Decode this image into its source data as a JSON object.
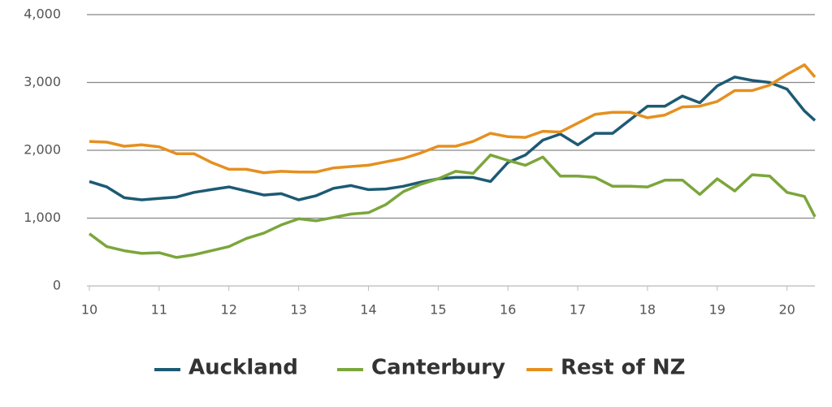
{
  "chart_data": {
    "type": "line",
    "x": [
      10,
      10.25,
      10.5,
      10.75,
      11,
      11.25,
      11.5,
      11.75,
      12,
      12.25,
      12.5,
      12.75,
      13,
      13.25,
      13.5,
      13.75,
      14,
      14.25,
      14.5,
      14.75,
      15,
      15.25,
      15.5,
      15.75,
      16,
      16.25,
      16.5,
      16.75,
      17,
      17.25,
      17.5,
      17.75,
      18,
      18.25,
      18.5,
      18.75,
      19,
      19.25,
      19.5,
      19.75,
      20,
      20.25,
      20.4
    ],
    "series": [
      {
        "name": "Auckland",
        "color": "#1d5a74",
        "values": [
          1540,
          1460,
          1300,
          1270,
          1290,
          1310,
          1380,
          1420,
          1460,
          1400,
          1340,
          1360,
          1270,
          1330,
          1440,
          1480,
          1420,
          1430,
          1470,
          1530,
          1580,
          1600,
          1600,
          1540,
          1820,
          1930,
          2150,
          2240,
          2080,
          2250,
          2250,
          2450,
          2650,
          2650,
          2800,
          2700,
          2950,
          3080,
          3030,
          3000,
          2900,
          2580,
          2440
        ]
      },
      {
        "name": "Canterbury",
        "color": "#7ba63b",
        "values": [
          770,
          580,
          520,
          480,
          490,
          420,
          460,
          520,
          580,
          700,
          780,
          900,
          990,
          960,
          1010,
          1060,
          1080,
          1200,
          1390,
          1500,
          1580,
          1690,
          1660,
          1930,
          1850,
          1780,
          1900,
          1620,
          1620,
          1600,
          1470,
          1470,
          1460,
          1560,
          1560,
          1350,
          1580,
          1400,
          1640,
          1620,
          1380,
          1320,
          1020
        ]
      },
      {
        "name": "Rest of NZ",
        "color": "#e5901f",
        "values": [
          2130,
          2120,
          2060,
          2080,
          2050,
          1950,
          1950,
          1820,
          1720,
          1720,
          1670,
          1690,
          1680,
          1680,
          1740,
          1760,
          1780,
          1830,
          1880,
          1960,
          2060,
          2060,
          2130,
          2250,
          2200,
          2190,
          2280,
          2270,
          2400,
          2530,
          2560,
          2560,
          2480,
          2520,
          2640,
          2650,
          2720,
          2880,
          2880,
          2960,
          3120,
          3260,
          3080
        ]
      }
    ],
    "xlim": [
      10,
      20.4
    ],
    "xticks": [
      10,
      11,
      12,
      13,
      14,
      15,
      16,
      17,
      18,
      19,
      20
    ],
    "ylim": [
      0,
      4000
    ],
    "yticks": [
      0,
      {
        "value": 1000,
        "label": "1,000"
      },
      {
        "value": 2000,
        "label": "2,000"
      },
      {
        "value": 3000,
        "label": "3,000"
      },
      {
        "value": 4000,
        "label": "4,000"
      }
    ],
    "grid": true,
    "legend": "bottom"
  }
}
